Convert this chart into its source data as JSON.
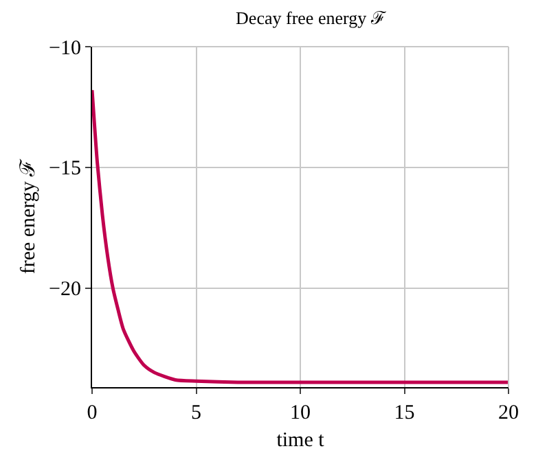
{
  "chart_data": {
    "type": "line",
    "title": "Decay free energy ℱ",
    "xlabel": "time t",
    "ylabel": "free energy ℱ",
    "x": [
      0,
      0.25,
      0.5,
      0.75,
      1,
      1.25,
      1.5,
      2,
      2.5,
      3,
      4,
      5,
      7,
      10,
      15,
      20
    ],
    "series": [
      {
        "color": "#c0004f",
        "values": [
          -11.8,
          -14.8,
          -17.0,
          -18.7,
          -20.0,
          -20.9,
          -21.7,
          -22.6,
          -23.2,
          -23.5,
          -23.8,
          -23.85,
          -23.9,
          -23.9,
          -23.9,
          -23.9
        ]
      }
    ],
    "xlim": [
      0,
      20
    ],
    "xticks": [
      0,
      5,
      10,
      15,
      20
    ],
    "ylim": [
      -24.1,
      -10
    ],
    "yticks": [
      {
        "value": -10,
        "label": "−10"
      },
      {
        "value": -15,
        "label": "−15"
      },
      {
        "value": -20,
        "label": "−20"
      }
    ],
    "grid": true,
    "marker": "none",
    "line_style": "solid"
  }
}
